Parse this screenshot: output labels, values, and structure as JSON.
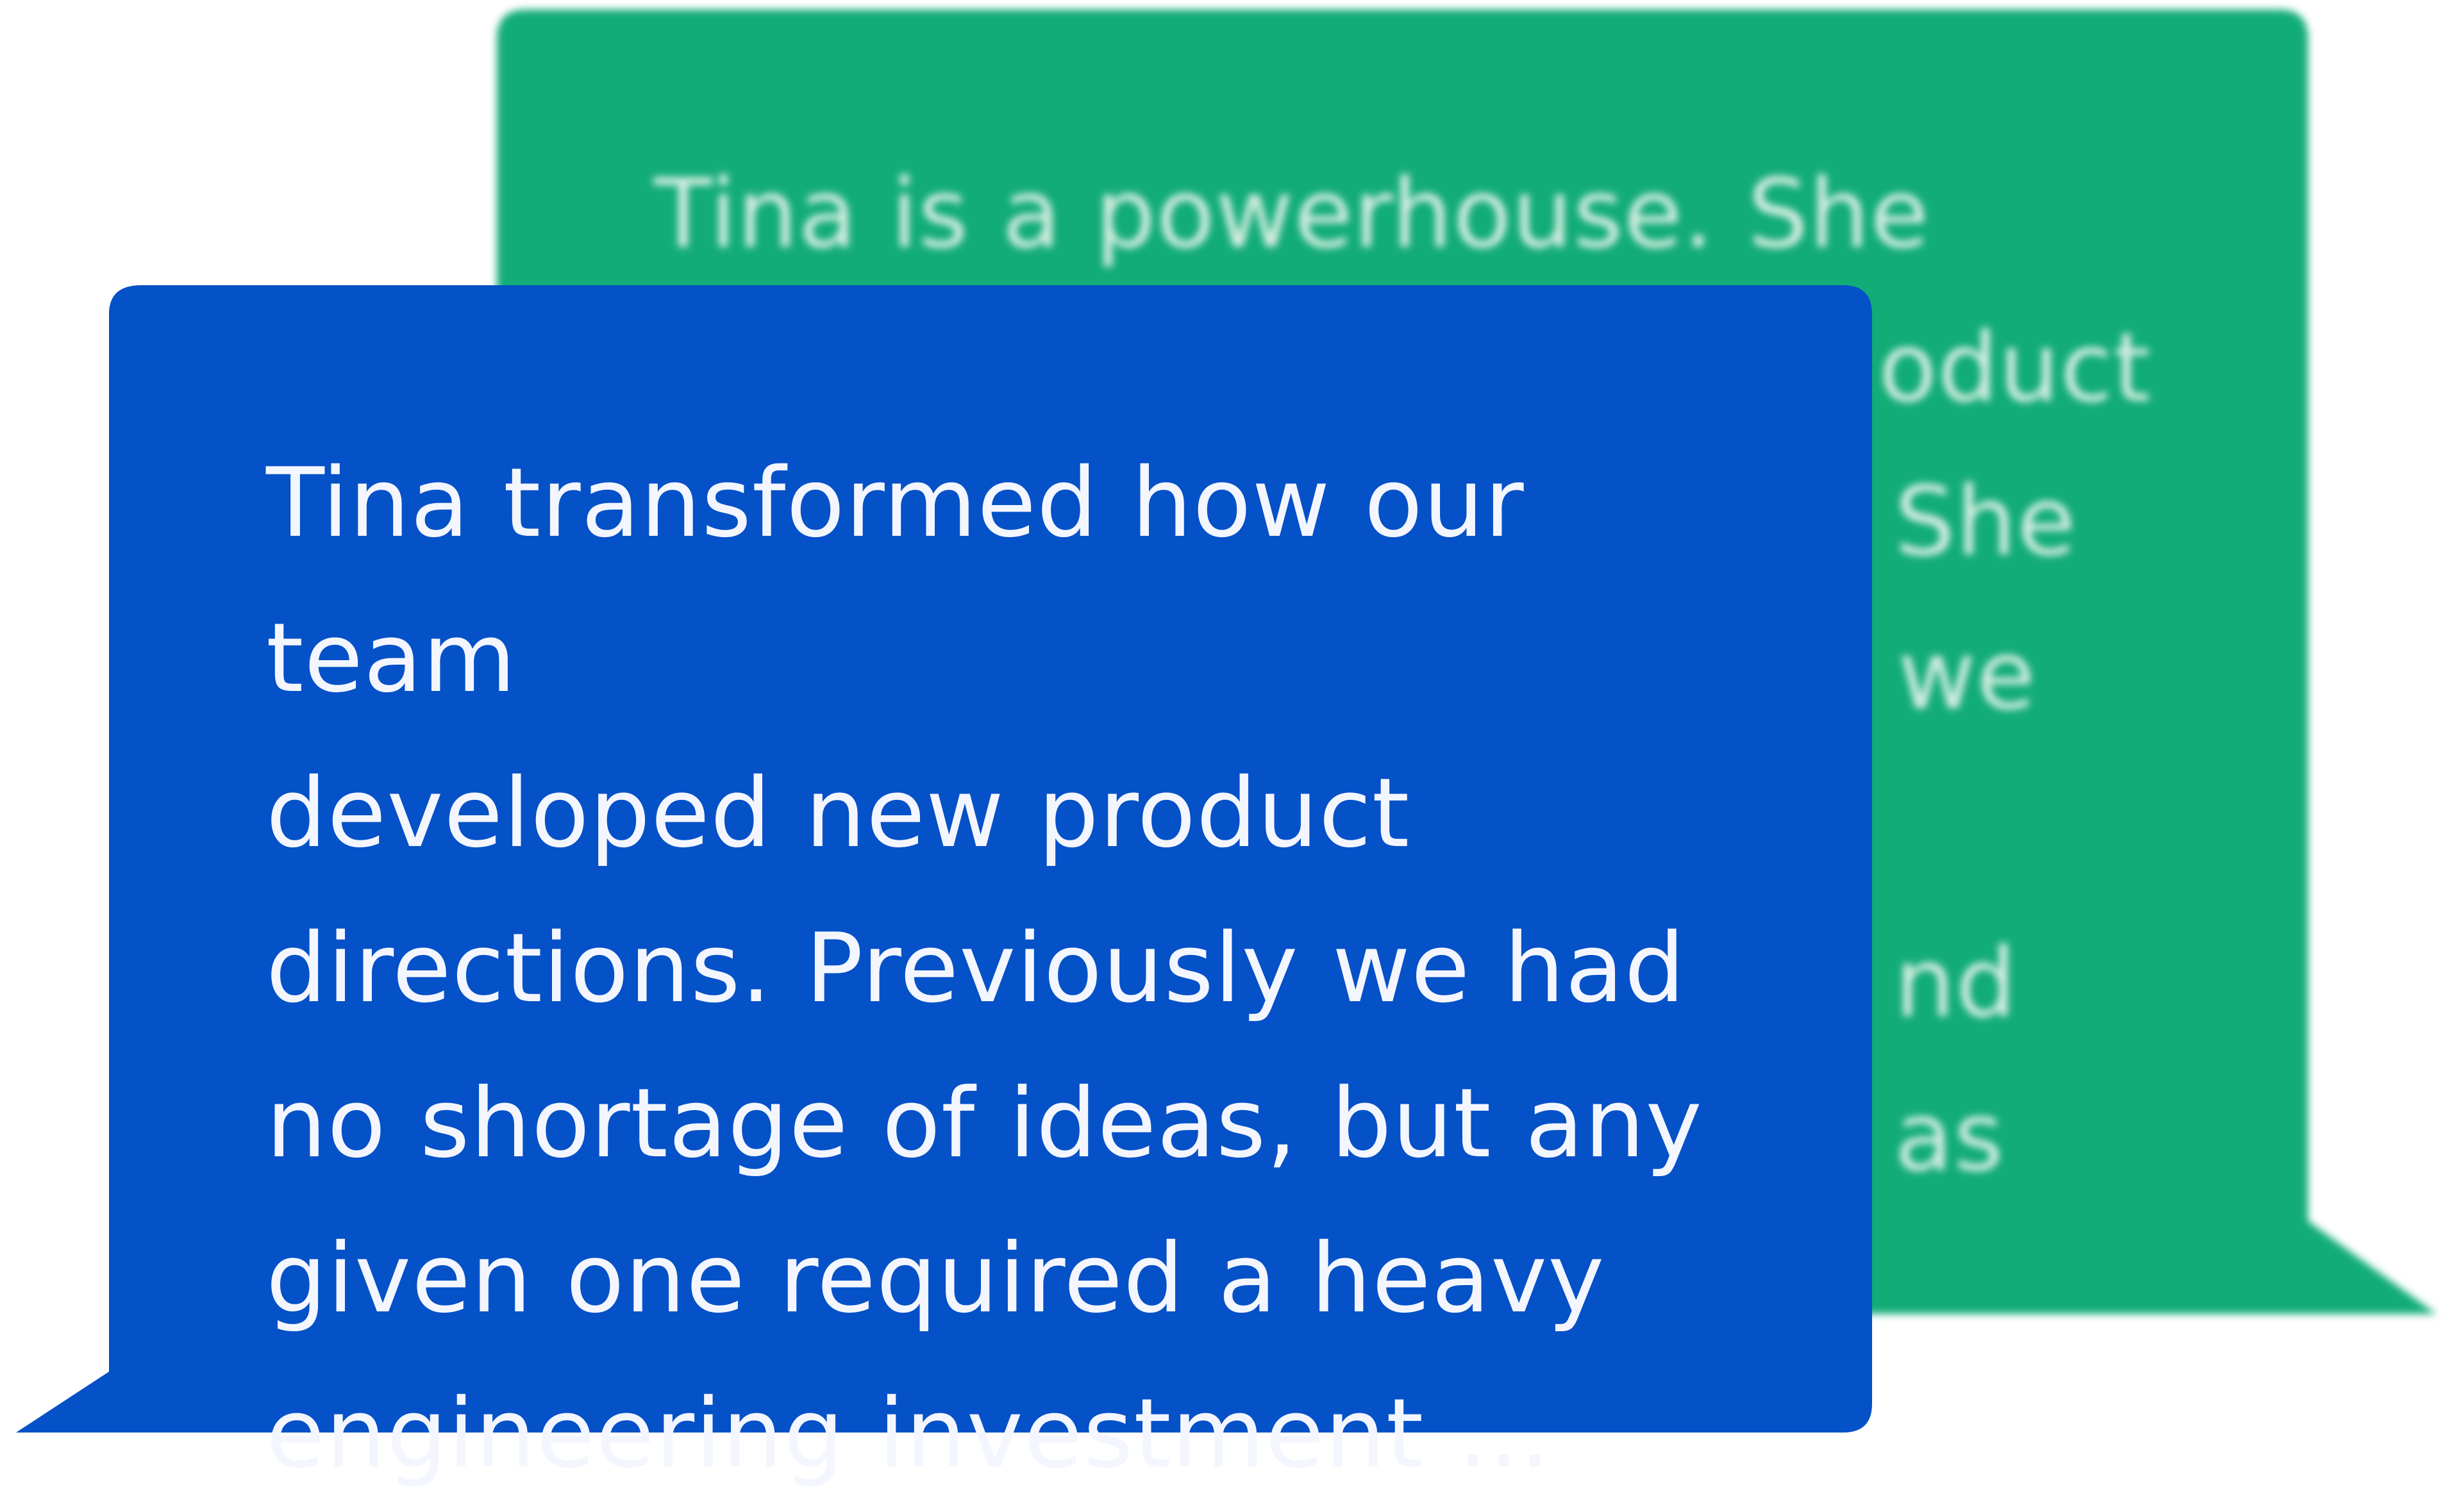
{
  "colors": {
    "front_bubble": "#0451c8",
    "back_bubble": "#12ac78",
    "front_text": "#f4f6ff",
    "back_text": "#d6eee3",
    "background": "#ffffff"
  },
  "testimonials": {
    "back": {
      "lines": [
        "Tina is a powerhouse. She",
        "oduct",
        "She",
        "we",
        "",
        "nd",
        "as"
      ]
    },
    "front": {
      "lines": [
        "Tina transformed how our team",
        "developed new product",
        "directions. Previously we had",
        "no shortage of ideas, but any",
        "given one required a heavy",
        "engineering investment ..."
      ]
    }
  }
}
